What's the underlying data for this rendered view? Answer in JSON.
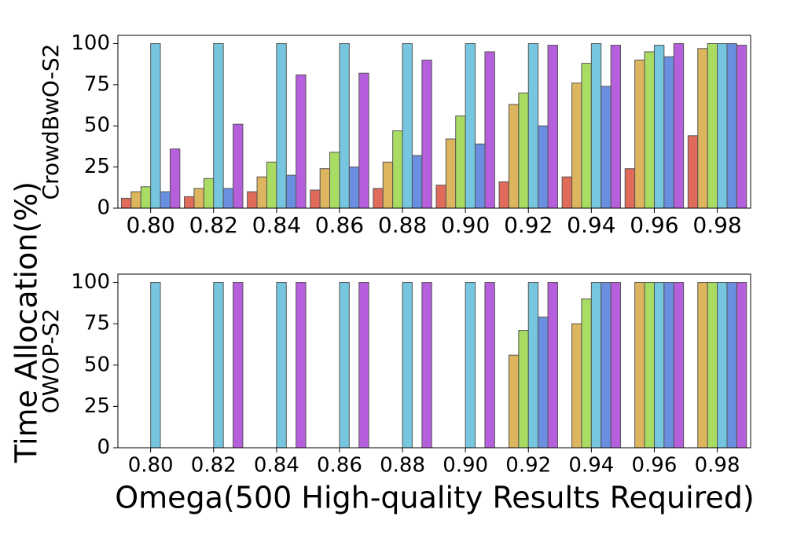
{
  "figure": {
    "ylabel": "Time Allocation(%)",
    "xlabel": "Omega(500 High-quality Results Required)"
  },
  "colors": [
    "#e06b5a",
    "#dcb55e",
    "#a8dc62",
    "#75c6de",
    "#6a8fe0",
    "#b65fdc"
  ],
  "chart_data": [
    {
      "type": "bar",
      "ylabel": "CrowdBwO-S2",
      "categories": [
        "0.80",
        "0.82",
        "0.84",
        "0.86",
        "0.88",
        "0.90",
        "0.92",
        "0.94",
        "0.96",
        "0.98"
      ],
      "ylim": [
        0,
        105
      ],
      "yticks": [
        0,
        25,
        50,
        75,
        100
      ],
      "series": [
        {
          "values": [
            6,
            7,
            10,
            11,
            12,
            14,
            16,
            19,
            24,
            44
          ]
        },
        {
          "values": [
            10,
            12,
            19,
            24,
            28,
            42,
            63,
            76,
            90,
            97
          ]
        },
        {
          "values": [
            13,
            18,
            28,
            34,
            47,
            56,
            70,
            88,
            95,
            100
          ]
        },
        {
          "values": [
            100,
            100,
            100,
            100,
            100,
            100,
            100,
            100,
            99,
            100
          ]
        },
        {
          "values": [
            10,
            12,
            20,
            25,
            32,
            39,
            50,
            74,
            92,
            100
          ]
        },
        {
          "values": [
            36,
            51,
            81,
            82,
            90,
            95,
            99,
            99,
            100,
            99
          ]
        }
      ]
    },
    {
      "type": "bar",
      "ylabel": "OWOP-S2",
      "categories": [
        "0.80",
        "0.82",
        "0.84",
        "0.86",
        "0.88",
        "0.90",
        "0.92",
        "0.94",
        "0.96",
        "0.98"
      ],
      "ylim": [
        0,
        105
      ],
      "yticks": [
        0,
        25,
        50,
        75,
        100
      ],
      "series": [
        {
          "values": [
            0,
            0,
            0,
            0,
            0,
            0,
            0,
            0,
            0,
            0
          ]
        },
        {
          "values": [
            0,
            0,
            0,
            0,
            0,
            0,
            56,
            75,
            100,
            100
          ]
        },
        {
          "values": [
            0,
            0,
            0,
            0,
            0,
            0,
            71,
            90,
            100,
            100
          ]
        },
        {
          "values": [
            100,
            100,
            100,
            100,
            100,
            100,
            100,
            100,
            100,
            100
          ]
        },
        {
          "values": [
            0,
            0,
            0,
            0,
            0,
            0,
            79,
            100,
            100,
            100
          ]
        },
        {
          "values": [
            0,
            100,
            100,
            100,
            100,
            100,
            100,
            100,
            100,
            100
          ]
        }
      ]
    }
  ]
}
